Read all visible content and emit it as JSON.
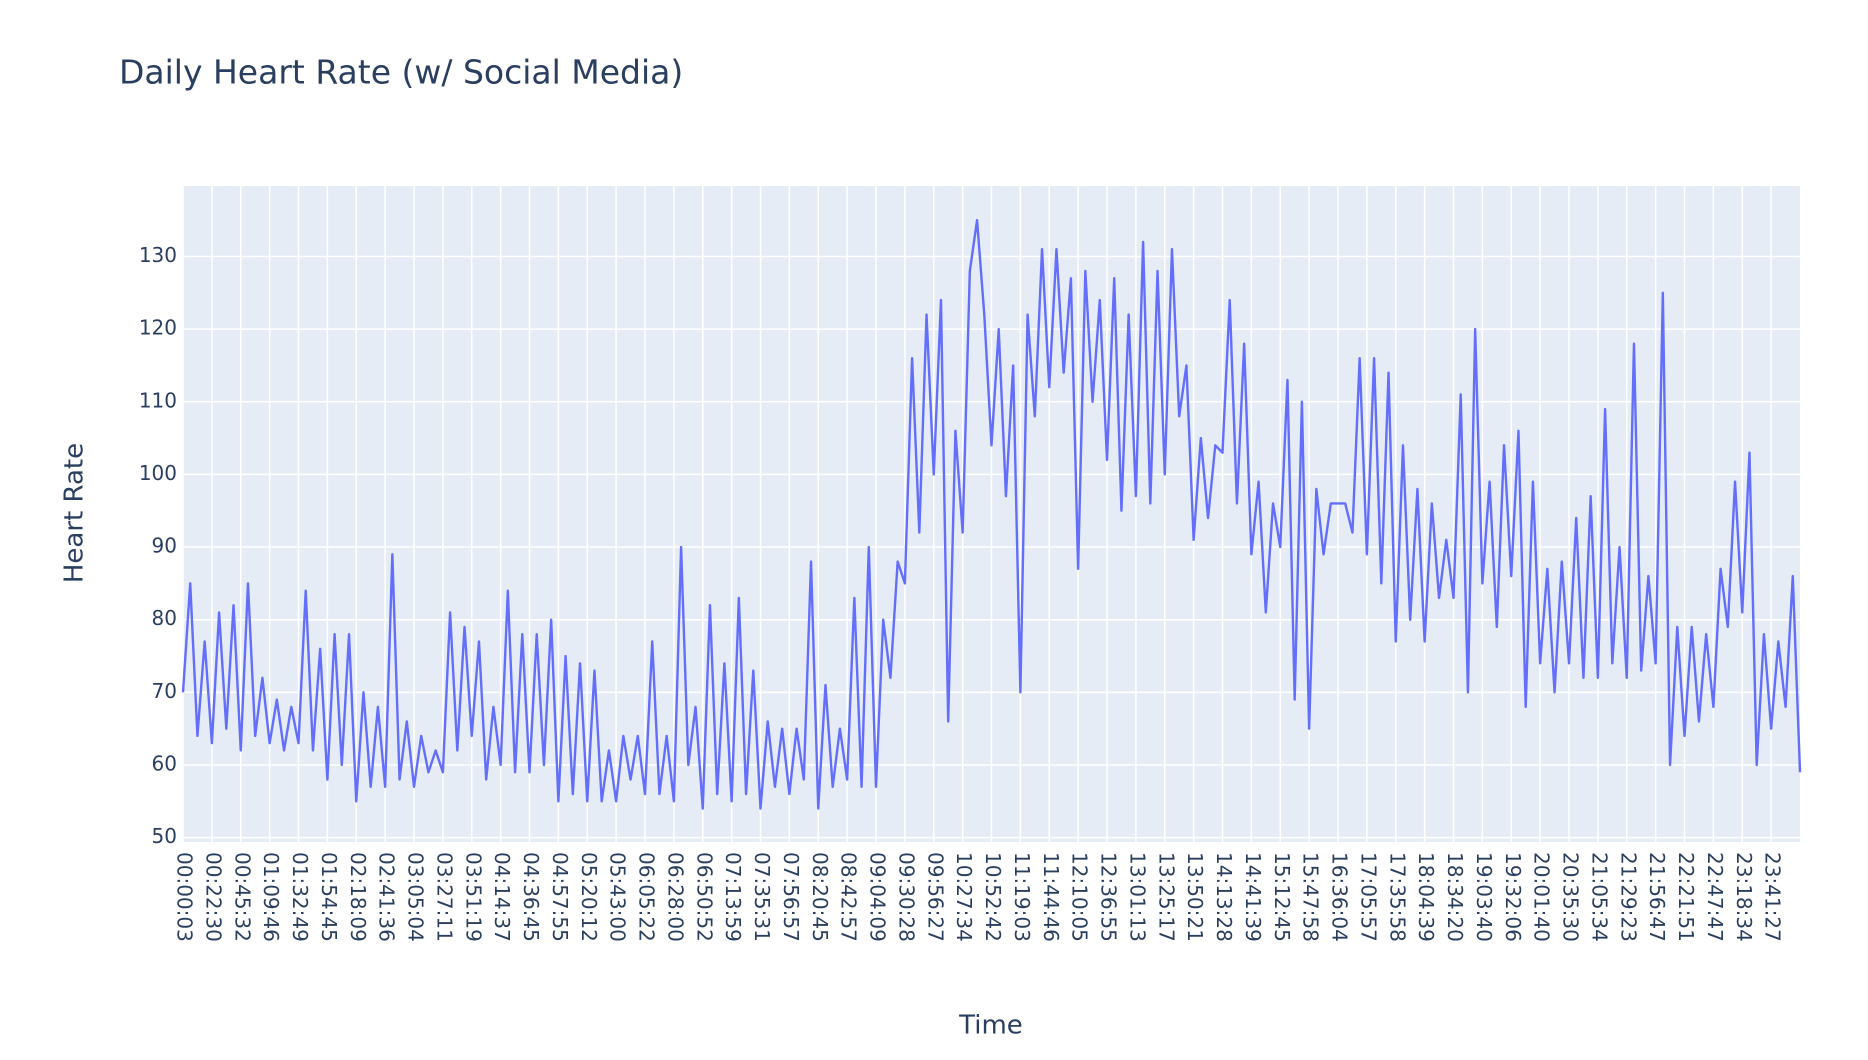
{
  "chart_data": {
    "type": "line",
    "title": "Daily Heart Rate (w/ Social Media)",
    "x_label": "Time",
    "y_label": "Heart Rate",
    "color": "#636efa",
    "grid": true,
    "categories": [
      "00:00:03",
      null,
      null,
      null,
      "00:22:30",
      null,
      null,
      null,
      "00:45:32",
      null,
      null,
      null,
      "01:09:46",
      null,
      null,
      null,
      "01:32:49",
      null,
      null,
      null,
      "01:54:45",
      null,
      null,
      null,
      "02:18:09",
      null,
      null,
      null,
      "02:41:36",
      null,
      null,
      null,
      "03:05:04",
      null,
      null,
      null,
      "03:27:11",
      null,
      null,
      null,
      "03:51:19",
      null,
      null,
      null,
      "04:14:37",
      null,
      null,
      null,
      "04:36:45",
      null,
      null,
      null,
      "04:57:55",
      null,
      null,
      null,
      "05:20:12",
      null,
      null,
      null,
      "05:43:00",
      null,
      null,
      null,
      "06:05:22",
      null,
      null,
      null,
      "06:28:00",
      null,
      null,
      null,
      "06:50:52",
      null,
      null,
      null,
      "07:13:59",
      null,
      null,
      null,
      "07:35:31",
      null,
      null,
      null,
      "07:56:57",
      null,
      null,
      null,
      "08:20:45",
      null,
      null,
      null,
      "08:42:57",
      null,
      null,
      null,
      "09:04:09",
      null,
      null,
      null,
      "09:30:28",
      null,
      null,
      null,
      "09:56:27",
      null,
      null,
      null,
      "10:27:34",
      null,
      null,
      null,
      "10:52:42",
      null,
      null,
      null,
      "11:19:03",
      null,
      null,
      null,
      "11:44:46",
      null,
      null,
      null,
      "12:10:05",
      null,
      null,
      null,
      "12:36:55",
      null,
      null,
      null,
      "13:01:13",
      null,
      null,
      null,
      "13:25:17",
      null,
      null,
      null,
      "13:50:21",
      null,
      null,
      null,
      "14:13:28",
      null,
      null,
      null,
      "14:41:39",
      null,
      null,
      null,
      "15:12:45",
      null,
      null,
      null,
      "15:47:58",
      null,
      null,
      null,
      "16:36:04",
      null,
      null,
      null,
      "17:05:57",
      null,
      null,
      null,
      "17:35:58",
      null,
      null,
      null,
      "18:04:39",
      null,
      null,
      null,
      "18:34:20",
      null,
      null,
      null,
      "19:03:40",
      null,
      null,
      null,
      "19:32:06",
      null,
      null,
      null,
      "20:01:40",
      null,
      null,
      null,
      "20:35:30",
      null,
      null,
      null,
      "21:05:34",
      null,
      null,
      null,
      "21:29:23",
      null,
      null,
      null,
      "21:56:47",
      null,
      null,
      null,
      "22:21:51",
      null,
      null,
      null,
      "22:47:47",
      null,
      null,
      null,
      "23:18:34",
      null,
      null,
      null,
      "23:41:27",
      null,
      null,
      null,
      null
    ],
    "values": [
      70,
      85,
      64,
      77,
      63,
      81,
      65,
      82,
      62,
      85,
      64,
      72,
      63,
      69,
      62,
      68,
      63,
      84,
      62,
      76,
      58,
      78,
      60,
      78,
      55,
      70,
      57,
      68,
      57,
      89,
      58,
      66,
      57,
      64,
      59,
      62,
      59,
      81,
      62,
      79,
      64,
      77,
      58,
      68,
      60,
      84,
      59,
      78,
      59,
      78,
      60,
      80,
      55,
      75,
      56,
      74,
      55,
      73,
      55,
      62,
      55,
      64,
      58,
      64,
      56,
      77,
      56,
      64,
      55,
      90,
      60,
      68,
      54,
      82,
      56,
      74,
      55,
      83,
      56,
      73,
      54,
      66,
      57,
      65,
      56,
      65,
      58,
      88,
      54,
      71,
      57,
      65,
      58,
      83,
      57,
      90,
      57,
      80,
      72,
      88,
      85,
      116,
      92,
      122,
      100,
      124,
      66,
      106,
      92,
      128,
      135,
      122,
      104,
      120,
      97,
      115,
      70,
      122,
      108,
      131,
      112,
      131,
      114,
      127,
      87,
      128,
      110,
      124,
      102,
      127,
      95,
      122,
      97,
      132,
      96,
      128,
      100,
      131,
      108,
      115,
      91,
      105,
      94,
      104,
      103,
      124,
      96,
      118,
      89,
      99,
      81,
      96,
      90,
      113,
      69,
      110,
      65,
      98,
      89,
      96,
      96,
      96,
      92,
      116,
      89,
      116,
      85,
      114,
      77,
      104,
      80,
      98,
      77,
      96,
      83,
      91,
      83,
      111,
      70,
      120,
      85,
      99,
      79,
      104,
      86,
      106,
      68,
      99,
      74,
      87,
      70,
      88,
      74,
      94,
      72,
      97,
      72,
      109,
      74,
      90,
      72,
      118,
      73,
      86,
      74,
      125,
      60,
      79,
      64,
      79,
      66,
      78,
      68,
      87,
      79,
      99,
      81,
      103,
      60,
      78,
      65,
      77,
      68,
      86,
      59
    ],
    "ylim": [
      49.4,
      139.7
    ],
    "yticks": [
      50,
      60,
      70,
      80,
      90,
      100,
      110,
      120,
      130
    ]
  }
}
